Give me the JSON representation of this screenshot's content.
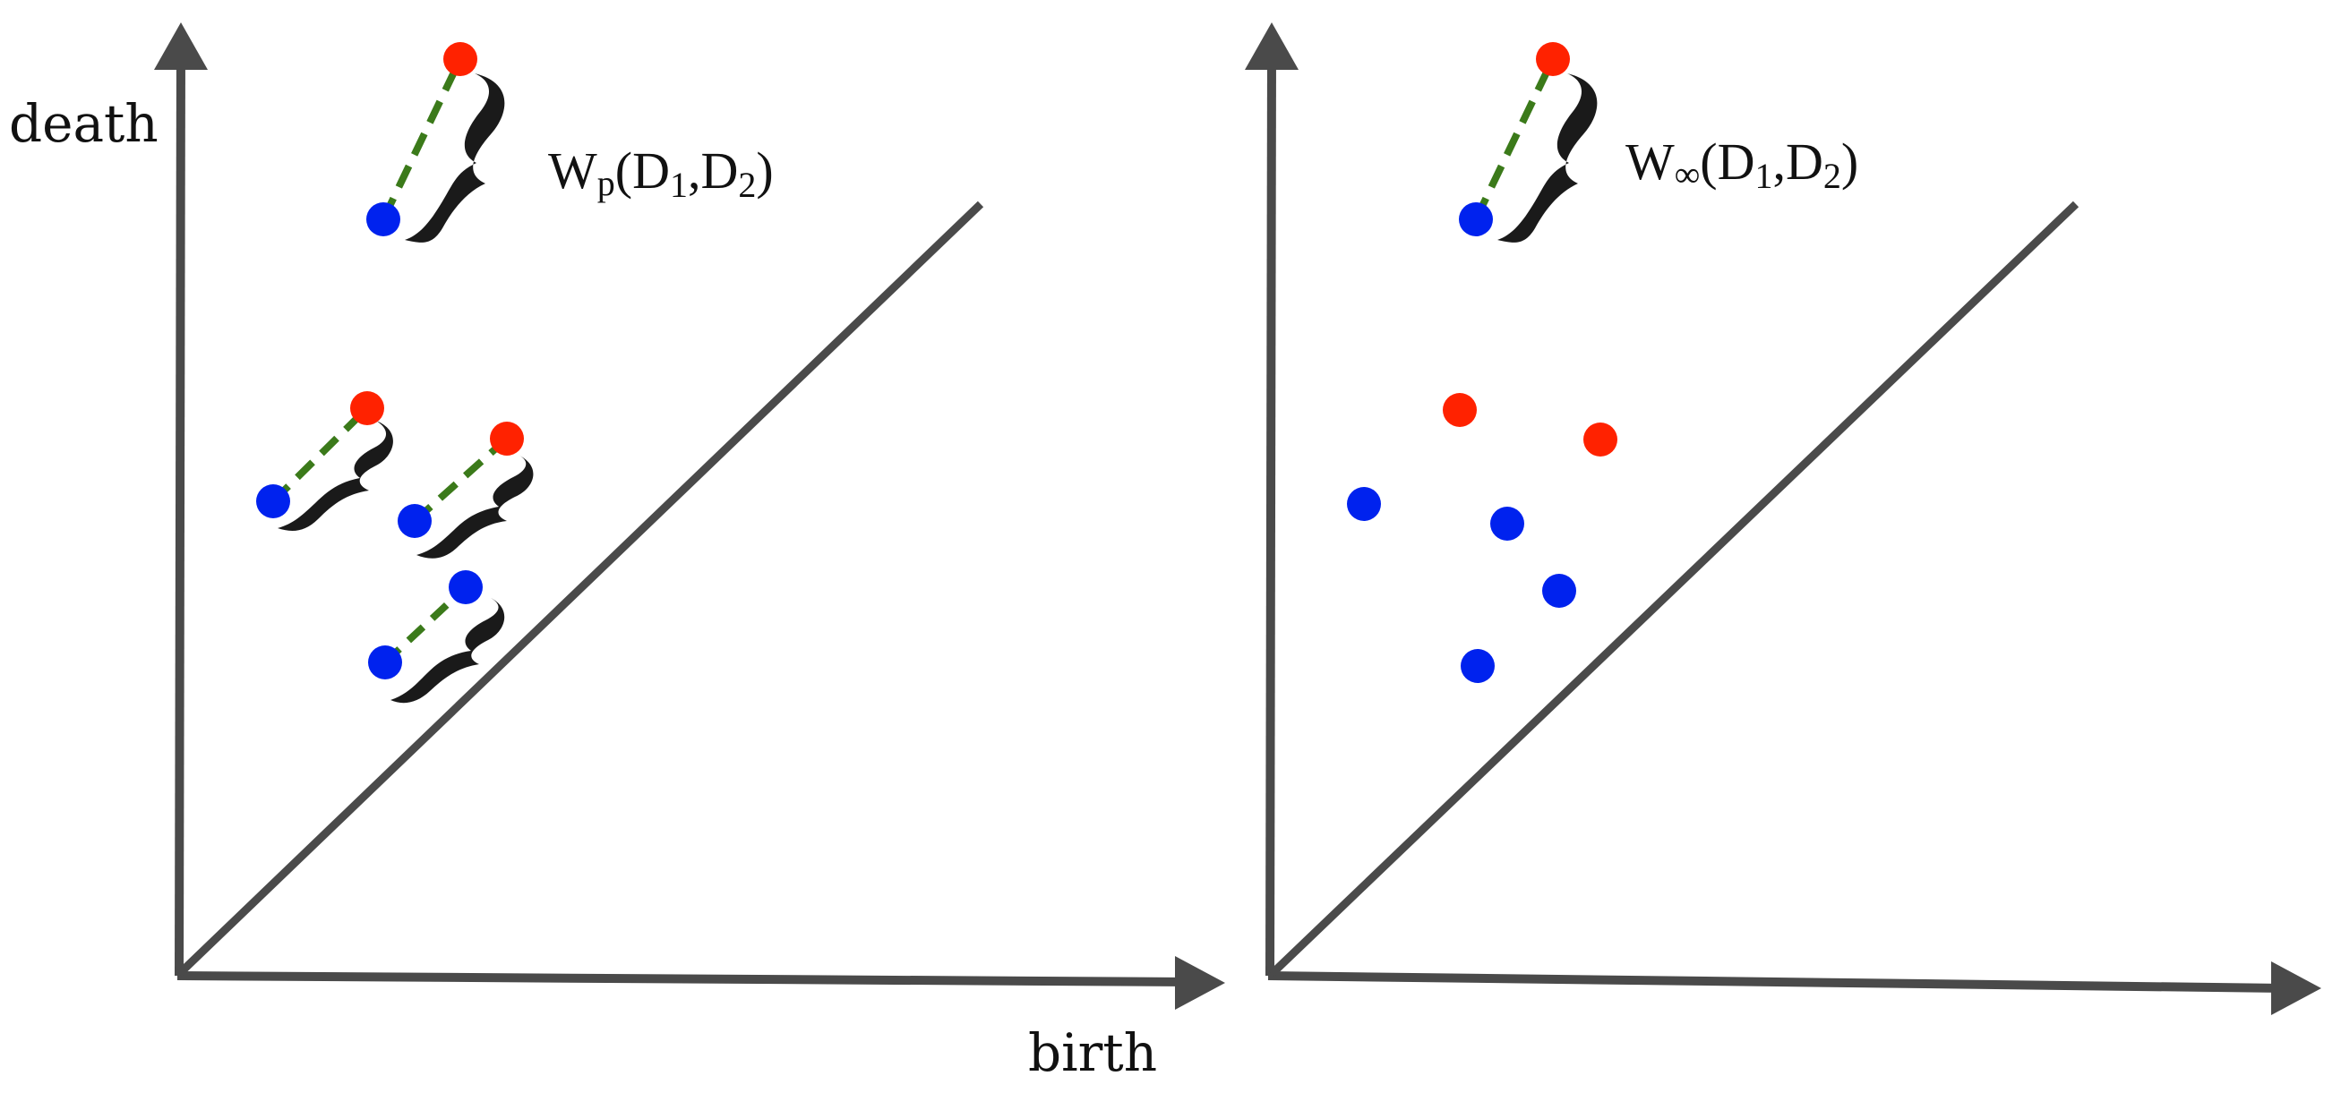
{
  "colors": {
    "axis": "#4a4a4a",
    "diagram_1": "#111111",
    "diagonal": "#4a4a4a",
    "point_d1": "#ff2200",
    "point_d2": "#0022ee",
    "matching": "#3b7a1a",
    "brace": "#1a1a1a"
  },
  "labels": {
    "death": "death",
    "birth": "birth"
  },
  "panels": [
    {
      "name": "left",
      "formula": {
        "main": "W",
        "sub": "p",
        "open": "(D",
        "sub1": "1",
        "comma": ",D",
        "sub2": "2",
        "close": ")"
      }
    },
    {
      "name": "right",
      "formula": {
        "main": "W",
        "sub": "∞",
        "open": "(D",
        "sub1": "1",
        "comma": ",D",
        "sub2": "2",
        "close": ")"
      }
    }
  ]
}
